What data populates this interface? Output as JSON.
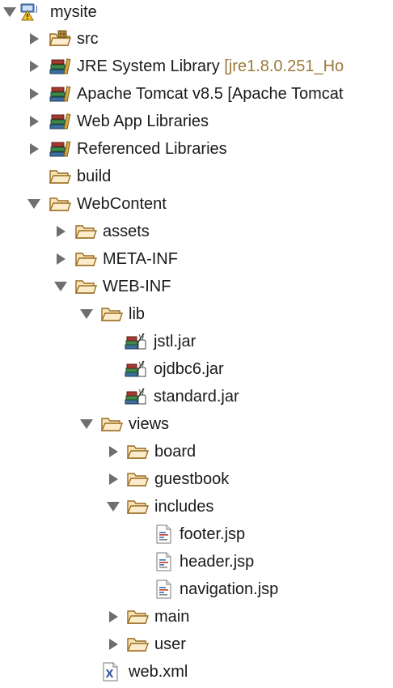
{
  "tree": {
    "root": {
      "label": "mysite"
    },
    "src": {
      "label": "src"
    },
    "jre": {
      "label": "JRE System Library",
      "decoration": "[jre1.8.0.251_Ho"
    },
    "tomcat": {
      "label": "Apache Tomcat v8.5 [Apache Tomcat"
    },
    "webapp_libs": {
      "label": "Web App Libraries"
    },
    "ref_libs": {
      "label": "Referenced Libraries"
    },
    "build": {
      "label": "build"
    },
    "webcontent": {
      "label": "WebContent"
    },
    "assets": {
      "label": "assets"
    },
    "meta_inf": {
      "label": "META-INF"
    },
    "web_inf": {
      "label": "WEB-INF"
    },
    "lib": {
      "label": "lib"
    },
    "jstl": {
      "label": "jstl.jar"
    },
    "ojdbc": {
      "label": "ojdbc6.jar"
    },
    "standard": {
      "label": "standard.jar"
    },
    "views": {
      "label": "views"
    },
    "board": {
      "label": "board"
    },
    "guestbook": {
      "label": "guestbook"
    },
    "includes": {
      "label": "includes"
    },
    "footer": {
      "label": "footer.jsp"
    },
    "header": {
      "label": "header.jsp"
    },
    "navigation": {
      "label": "navigation.jsp"
    },
    "main": {
      "label": "main"
    },
    "user": {
      "label": "user"
    },
    "webxml": {
      "label": "web.xml"
    }
  },
  "icons": {
    "folder": "folder-icon",
    "package_folder": "package-folder-icon",
    "library": "library-icon",
    "jar": "jar-icon",
    "jsp": "jsp-file-icon",
    "xml": "xml-file-icon",
    "project": "project-icon"
  }
}
